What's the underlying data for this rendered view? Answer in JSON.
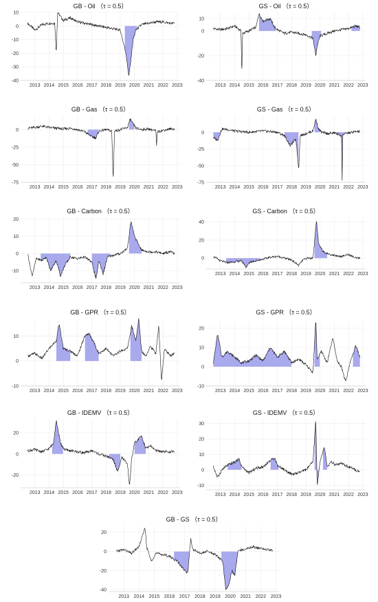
{
  "figure": {
    "fill_color": "#a9a9ee",
    "line_color": "#111111",
    "grid": true
  },
  "chart_data": [
    {
      "type": "area",
      "title": "GB - Oil （τ = 0.5）",
      "x": [
        2013,
        2013.5,
        2014,
        2014.5,
        2014.9,
        2015,
        2015.1,
        2015.5,
        2016,
        2016.5,
        2017,
        2017.5,
        2018,
        2018.5,
        2019,
        2019.5,
        2019.9,
        2020.1,
        2020.25,
        2020.4,
        2020.6,
        2021,
        2021.5,
        2022,
        2022.5,
        2023,
        2023.3
      ],
      "y": [
        2,
        -3,
        1,
        2,
        2,
        -20,
        10,
        4,
        6,
        3,
        2,
        1,
        0,
        -1,
        -2,
        -3,
        -20,
        -37,
        -25,
        -10,
        -3,
        1,
        2,
        3,
        3,
        2,
        2
      ],
      "shaded_bands": [
        [
          2019.8,
          2020.7
        ]
      ],
      "ylim": [
        -40,
        10
      ],
      "yticks": [
        10,
        0,
        -10,
        -20,
        -30,
        -40
      ],
      "xticks": [
        "2013",
        "2014",
        "2015",
        "2016",
        "2017",
        "2018",
        "2019",
        "2020",
        "2021",
        "2022",
        "2023"
      ]
    },
    {
      "type": "area",
      "title": "GS - Oil （τ = 0.5）",
      "x": [
        2013,
        2013.5,
        2014,
        2014.5,
        2014.95,
        2015,
        2015.05,
        2015.5,
        2016,
        2016.2,
        2016.5,
        2017,
        2017.3,
        2017.5,
        2018,
        2018.5,
        2019,
        2019.5,
        2020,
        2020.2,
        2020.3,
        2020.5,
        2021,
        2021.5,
        2022,
        2022.5,
        2023,
        2023.3
      ],
      "y": [
        2,
        1,
        2,
        4,
        0,
        -38,
        -2,
        0,
        3,
        14,
        8,
        10,
        3,
        1,
        -2,
        -1,
        -2,
        -3,
        -6,
        -20,
        -12,
        -4,
        -2,
        0,
        1,
        2,
        4,
        3
      ],
      "shaded_bands": [
        [
          2016.2,
          2017.4
        ],
        [
          2019.9,
          2020.6
        ],
        [
          2022.7,
          2023.3
        ]
      ],
      "ylim": [
        -40,
        15
      ],
      "yticks": [
        10,
        0,
        -20,
        -40
      ],
      "xticks": [
        "2013",
        "2014",
        "2015",
        "2016",
        "2017",
        "2018",
        "2019",
        "2020",
        "2021",
        "2022",
        "2023"
      ]
    },
    {
      "type": "area",
      "title": "GB - Gas （τ = 0.5）",
      "x": [
        2013,
        2013.5,
        2014,
        2014.5,
        2015,
        2015.5,
        2016,
        2016.5,
        2017,
        2017.5,
        2017.8,
        2018,
        2018.5,
        2018.9,
        2019,
        2019.1,
        2019.5,
        2020,
        2020.2,
        2020.4,
        2020.6,
        2021,
        2021.5,
        2022,
        2022.05,
        2022.1,
        2022.5,
        2023,
        2023.3
      ],
      "y": [
        2,
        3,
        5,
        3,
        2,
        1,
        2,
        0,
        -3,
        -10,
        -12,
        -2,
        0,
        -2,
        -72,
        -2,
        0,
        3,
        15,
        8,
        2,
        0,
        1,
        -2,
        -25,
        -3,
        -1,
        1,
        1
      ],
      "shaded_bands": [
        [
          2017.2,
          2018
        ],
        [
          2020.1,
          2020.5
        ]
      ],
      "ylim": [
        -75,
        20
      ],
      "yticks": [
        0,
        -25,
        -50,
        -75
      ],
      "xticks": [
        "2013",
        "2014",
        "2015",
        "2016",
        "2017",
        "2018",
        "2019",
        "2020",
        "2021",
        "2022",
        "2023"
      ]
    },
    {
      "type": "area",
      "title": "GS - Gas （τ = 0.5）",
      "x": [
        2013,
        2013.3,
        2013.6,
        2014,
        2014.5,
        2015,
        2015.5,
        2016,
        2016.5,
        2017,
        2017.5,
        2018,
        2018.4,
        2018.8,
        2019,
        2019.1,
        2019.5,
        2020,
        2020.2,
        2020.4,
        2020.6,
        2021,
        2021.5,
        2022,
        2022.05,
        2022.1,
        2022.5,
        2023,
        2023.3
      ],
      "y": [
        -8,
        -12,
        5,
        4,
        2,
        1,
        0,
        1,
        2,
        1,
        0,
        -5,
        -20,
        -10,
        -55,
        -5,
        -2,
        2,
        20,
        5,
        0,
        -2,
        -1,
        -5,
        -72,
        -3,
        -1,
        1,
        1
      ],
      "shaded_bands": [
        [
          2013,
          2013.6
        ],
        [
          2018,
          2019
        ],
        [
          2020.1,
          2020.5
        ],
        [
          2021.6,
          2022.5
        ]
      ],
      "ylim": [
        -75,
        25
      ],
      "yticks": [
        0,
        -25,
        -50,
        -75
      ],
      "xticks": [
        "2013",
        "2014",
        "2015",
        "2016",
        "2017",
        "2018",
        "2019",
        "2020",
        "2021",
        "2022",
        "2023"
      ]
    },
    {
      "type": "area",
      "title": "GB - Carbon （τ = 0.5）",
      "x": [
        2013,
        2013.3,
        2013.6,
        2014,
        2014.3,
        2014.6,
        2015,
        2015.3,
        2015.6,
        2016,
        2016.5,
        2017,
        2017.5,
        2017.8,
        2018,
        2018.3,
        2018.6,
        2019,
        2019.5,
        2020,
        2020.25,
        2020.5,
        2020.8,
        2021,
        2021.5,
        2022,
        2022.5,
        2023,
        2023.3
      ],
      "y": [
        0,
        -13,
        -3,
        -4,
        -2,
        -10,
        -4,
        -13,
        -7,
        -2,
        -3,
        -2,
        -5,
        -15,
        -4,
        -12,
        -2,
        -1,
        0,
        3,
        19,
        10,
        5,
        2,
        1,
        1,
        0,
        1,
        0
      ],
      "shaded_bands": [
        [
          2013.9,
          2016
        ],
        [
          2017.5,
          2018.8
        ],
        [
          2020.1,
          2021
        ]
      ],
      "ylim": [
        -17,
        21
      ],
      "yticks": [
        20,
        10,
        0,
        -10
      ],
      "xticks": [
        "2013",
        "2014",
        "2015",
        "2016",
        "2017",
        "2018",
        "2019",
        "2020",
        "2021",
        "2022",
        "2023"
      ]
    },
    {
      "type": "area",
      "title": "GS - Carbon （τ = 0.5）",
      "x": [
        2013,
        2013.5,
        2014,
        2014.5,
        2015,
        2015.3,
        2015.6,
        2016,
        2016.5,
        2017,
        2017.5,
        2018,
        2018.5,
        2019,
        2019.3,
        2019.6,
        2020,
        2020.25,
        2020.4,
        2020.7,
        2021,
        2021.5,
        2022,
        2022.5,
        2023,
        2023.3
      ],
      "y": [
        2,
        -3,
        -5,
        -4,
        -3,
        -10,
        -4,
        -3,
        -1,
        1,
        2,
        0,
        -2,
        -8,
        -2,
        0,
        0,
        42,
        15,
        8,
        5,
        3,
        2,
        4,
        0,
        0
      ],
      "shaded_bands": [
        [
          2013.9,
          2016.3
        ],
        [
          2020.1,
          2021
        ]
      ],
      "ylim": [
        -12,
        45
      ],
      "yticks": [
        40,
        20,
        0
      ],
      "xticks": [
        "2013",
        "2014",
        "2015",
        "2016",
        "2017",
        "2018",
        "2019",
        "2020",
        "2021",
        "2022",
        "2023"
      ]
    },
    {
      "type": "area",
      "title": "GB - GPR （τ = 0.5）",
      "x": [
        2013,
        2013.5,
        2014,
        2014.5,
        2015,
        2015.2,
        2015.5,
        2016,
        2016.5,
        2017,
        2017.3,
        2017.6,
        2018,
        2018.5,
        2019,
        2019.5,
        2020,
        2020.3,
        2020.6,
        2020.8,
        2021,
        2021.3,
        2021.6,
        2022,
        2022.2,
        2022.4,
        2022.6,
        2023,
        2023.3
      ],
      "y": [
        2,
        3,
        1,
        5,
        8,
        15,
        5,
        4,
        2,
        10,
        11,
        8,
        3,
        5,
        2,
        4,
        5,
        14,
        8,
        17,
        4,
        2,
        6,
        3,
        14,
        -8,
        5,
        2,
        3
      ],
      "shaded_bands": [
        [
          2015,
          2016
        ],
        [
          2017,
          2018
        ],
        [
          2020.2,
          2021
        ]
      ],
      "ylim": [
        -10,
        17
      ],
      "yticks": [
        10,
        0,
        -10
      ],
      "xticks": [
        "2013",
        "2014",
        "2015",
        "2016",
        "2017",
        "2018",
        "2019",
        "2020",
        "2021",
        "2022",
        "2023"
      ]
    },
    {
      "type": "area",
      "title": "GS - GPR （τ = 0.5）",
      "x": [
        2013,
        2013.3,
        2013.6,
        2014,
        2014.5,
        2015,
        2015.5,
        2016,
        2016.5,
        2017,
        2017.5,
        2018,
        2018.5,
        2019,
        2019.5,
        2020,
        2020.2,
        2020.3,
        2020.6,
        2021,
        2021.4,
        2021.7,
        2022,
        2022.3,
        2022.6,
        2023,
        2023.3
      ],
      "y": [
        2,
        17,
        5,
        8,
        5,
        2,
        3,
        6,
        3,
        10,
        5,
        8,
        2,
        4,
        1,
        -3,
        25,
        4,
        8,
        2,
        15,
        3,
        0,
        -8,
        2,
        11,
        5
      ],
      "shaded_bands": [
        [
          2013,
          2018.5
        ],
        [
          2020.1,
          2020.5
        ],
        [
          2022.8,
          2023.3
        ]
      ],
      "ylim": [
        -10,
        25
      ],
      "yticks": [
        20,
        10,
        0,
        -10
      ],
      "xticks": [
        "2013",
        "2014",
        "2015",
        "2016",
        "2017",
        "2018",
        "2019",
        "2020",
        "2021",
        "2022",
        "2023"
      ]
    },
    {
      "type": "area",
      "title": "GB - IDEMV （τ = 0.5）",
      "x": [
        2013,
        2013.5,
        2014,
        2014.5,
        2014.8,
        2015,
        2015.3,
        2015.6,
        2016,
        2016.5,
        2017,
        2017.5,
        2018,
        2018.5,
        2019,
        2019.3,
        2019.6,
        2020,
        2020.15,
        2020.3,
        2020.5,
        2021,
        2021.3,
        2021.6,
        2022,
        2022.5,
        2023,
        2023.3
      ],
      "y": [
        3,
        4,
        2,
        5,
        10,
        32,
        10,
        4,
        3,
        2,
        1,
        3,
        0,
        -2,
        -5,
        -17,
        -3,
        -10,
        -30,
        -5,
        10,
        17,
        5,
        8,
        3,
        2,
        2,
        2
      ],
      "shaded_bands": [
        [
          2014.7,
          2015.5
        ],
        [
          2018.7,
          2019.5
        ],
        [
          2020.5,
          2021.3
        ]
      ],
      "ylim": [
        -32,
        33
      ],
      "yticks": [
        20,
        0,
        -20
      ],
      "xticks": [
        "2013",
        "2014",
        "2015",
        "2016",
        "2017",
        "2018",
        "2019",
        "2020",
        "2021",
        "2022",
        "2023"
      ]
    },
    {
      "type": "area",
      "title": "GS - IDEMV （τ = 0.5）",
      "x": [
        2013,
        2013.3,
        2013.6,
        2014,
        2014.5,
        2014.8,
        2015,
        2015.5,
        2016,
        2016.5,
        2017,
        2017.3,
        2017.5,
        2018,
        2018.5,
        2019,
        2019.5,
        2020,
        2020.2,
        2020.3,
        2020.5,
        2020.8,
        2021,
        2021.3,
        2021.6,
        2022,
        2022.5,
        2023,
        2023.3
      ],
      "y": [
        2,
        -5,
        0,
        3,
        5,
        7,
        2,
        -2,
        1,
        2,
        6,
        8,
        3,
        0,
        -3,
        -2,
        0,
        5,
        33,
        -10,
        5,
        15,
        2,
        5,
        3,
        4,
        2,
        0,
        -1
      ],
      "shaded_bands": [
        [
          2014,
          2015
        ],
        [
          2017,
          2017.6
        ],
        [
          2020.1,
          2020.4
        ],
        [
          2020.7,
          2021
        ]
      ],
      "ylim": [
        -13,
        33
      ],
      "yticks": [
        30,
        20,
        10,
        0,
        -10
      ],
      "xticks": [
        "2013",
        "2014",
        "2015",
        "2016",
        "2017",
        "2018",
        "2019",
        "2020",
        "2021",
        "2022",
        "2023"
      ]
    },
    {
      "type": "area",
      "title": "GB - GS （τ = 0.5）",
      "x": [
        2013,
        2013.5,
        2014,
        2014.5,
        2014.9,
        2015,
        2015.3,
        2015.6,
        2016,
        2016.5,
        2017,
        2017.5,
        2017.7,
        2017.9,
        2018,
        2018.5,
        2019,
        2019.5,
        2020,
        2020.2,
        2020.4,
        2020.6,
        2020.8,
        2021,
        2021.5,
        2022,
        2022.5,
        2023,
        2023.3
      ],
      "y": [
        0,
        2,
        -2,
        5,
        25,
        5,
        -10,
        -2,
        -3,
        -5,
        -10,
        -20,
        -23,
        14,
        3,
        -2,
        0,
        -3,
        -10,
        -40,
        -35,
        -20,
        -25,
        0,
        3,
        5,
        3,
        2,
        1
      ],
      "shaded_bands": [
        [
          2016.8,
          2017.8
        ],
        [
          2019.9,
          2021
        ]
      ],
      "ylim": [
        -42,
        27
      ],
      "yticks": [
        20,
        0,
        -20,
        -40
      ],
      "xticks": [
        "2013",
        "2014",
        "2015",
        "2016",
        "2017",
        "2018",
        "2019",
        "2020",
        "2021",
        "2022",
        "2023"
      ]
    }
  ]
}
